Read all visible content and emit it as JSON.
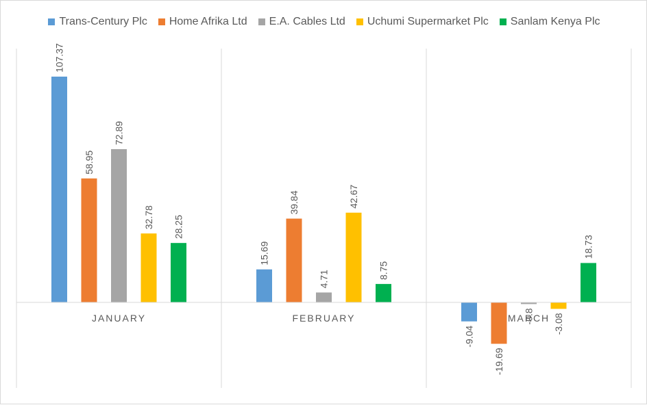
{
  "chart_data": {
    "type": "bar",
    "categories": [
      "JANUARY",
      "FEBRUARY",
      "MARCH"
    ],
    "series": [
      {
        "name": "Trans-Century Plc",
        "color": "#5b9bd5",
        "values": [
          107.37,
          15.69,
          -9.04
        ]
      },
      {
        "name": "Home Afrika Ltd",
        "color": "#ed7d31",
        "values": [
          58.95,
          39.84,
          -19.69
        ]
      },
      {
        "name": "E.A. Cables Ltd",
        "color": "#a5a5a5",
        "values": [
          72.89,
          4.71,
          -0.8
        ]
      },
      {
        "name": "Uchumi Supermarket Plc",
        "color": "#ffc000",
        "values": [
          32.78,
          42.67,
          -3.08
        ]
      },
      {
        "name": "Sanlam Kenya Plc",
        "color": "#00b050",
        "values": [
          28.25,
          8.75,
          18.73
        ]
      }
    ],
    "data_labels": [
      [
        "107.37",
        "15.69",
        "-9.04"
      ],
      [
        "58.95",
        "39.84",
        "-19.69"
      ],
      [
        "72.89",
        "4.71",
        "-0.8"
      ],
      [
        "32.78",
        "42.67",
        "-3.08"
      ],
      [
        "28.25",
        "8.75",
        "18.73"
      ]
    ],
    "title": "",
    "xlabel": "",
    "ylabel": "",
    "ylim": [
      -40,
      120
    ],
    "legend_position": "top",
    "grid": "vertical category separators only"
  }
}
